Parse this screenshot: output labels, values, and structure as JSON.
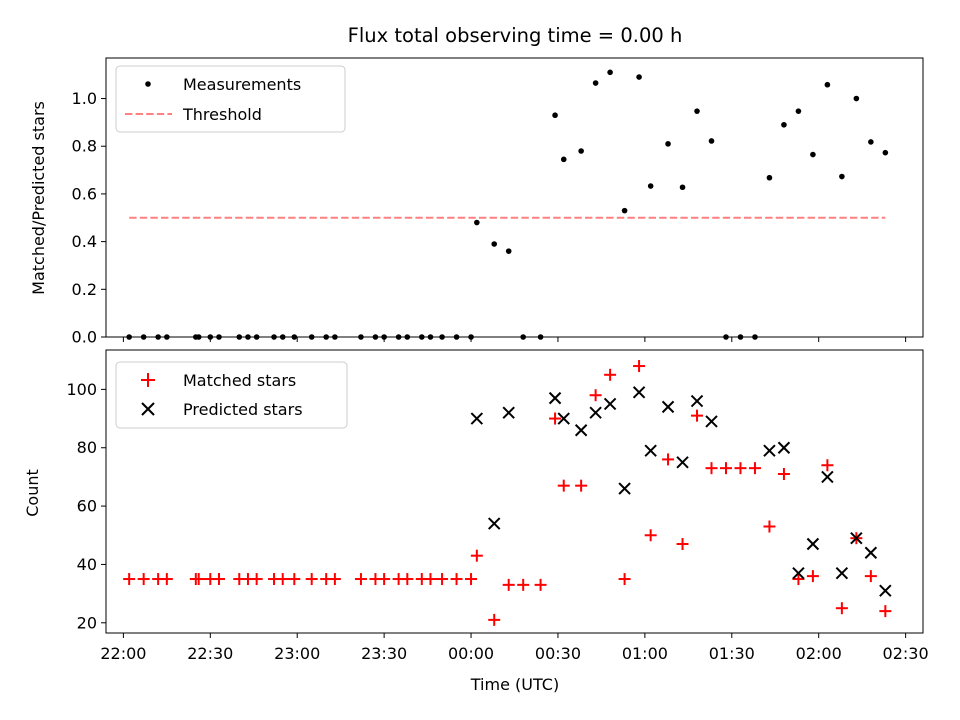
{
  "chart_data": [
    {
      "type": "scatter",
      "title": "Flux total observing time = 0.00 h",
      "xlabel": "",
      "ylabel": "Matched/Predicted stars",
      "xlim": [
        "21:54",
        "02:36"
      ],
      "ylim": [
        0,
        1.17
      ],
      "yticks": [
        "0.0",
        "0.2",
        "0.4",
        "0.6",
        "0.8",
        "1.0"
      ],
      "legend_position": "upper-left",
      "series": [
        {
          "name": "Measurements",
          "marker": "dot",
          "color": "#000000",
          "points": [
            [
              "22:02",
              0
            ],
            [
              "22:07",
              0
            ],
            [
              "22:12",
              0
            ],
            [
              "22:15",
              0
            ],
            [
              "22:25",
              0
            ],
            [
              "22:26",
              0
            ],
            [
              "22:30",
              0
            ],
            [
              "22:33",
              0
            ],
            [
              "22:40",
              0
            ],
            [
              "22:43",
              0
            ],
            [
              "22:46",
              0
            ],
            [
              "22:52",
              0
            ],
            [
              "22:55",
              0
            ],
            [
              "22:59",
              0
            ],
            [
              "23:05",
              0
            ],
            [
              "23:10",
              0
            ],
            [
              "23:13",
              0
            ],
            [
              "23:22",
              0
            ],
            [
              "23:27",
              0
            ],
            [
              "23:30",
              0
            ],
            [
              "23:35",
              0
            ],
            [
              "23:38",
              0
            ],
            [
              "23:43",
              0
            ],
            [
              "23:46",
              0
            ],
            [
              "23:50",
              0
            ],
            [
              "23:55",
              0
            ],
            [
              "00:00",
              0
            ],
            [
              "00:02",
              0.48
            ],
            [
              "00:08",
              0.39
            ],
            [
              "00:13",
              0.36
            ],
            [
              "00:18",
              0
            ],
            [
              "00:24",
              0
            ],
            [
              "00:29",
              0.93
            ],
            [
              "00:32",
              0.745
            ],
            [
              "00:38",
              0.78
            ],
            [
              "00:43",
              1.065
            ],
            [
              "00:48",
              1.11
            ],
            [
              "00:53",
              0.53
            ],
            [
              "00:58",
              1.09
            ],
            [
              "01:02",
              0.633
            ],
            [
              "01:08",
              0.81
            ],
            [
              "01:13",
              0.628
            ],
            [
              "01:18",
              0.947
            ],
            [
              "01:23",
              0.822
            ],
            [
              "01:28",
              0
            ],
            [
              "01:33",
              0
            ],
            [
              "01:38",
              0
            ],
            [
              "01:43",
              0.668
            ],
            [
              "01:48",
              0.89
            ],
            [
              "01:53",
              0.947
            ],
            [
              "01:58",
              0.765
            ],
            [
              "02:03",
              1.058
            ],
            [
              "02:08",
              0.673
            ],
            [
              "02:13",
              1.0
            ],
            [
              "02:18",
              0.818
            ],
            [
              "02:23",
              0.773
            ]
          ]
        },
        {
          "name": "Threshold",
          "marker": "dashed-line",
          "color": "#ff8080",
          "points": [
            [
              "22:02",
              0.5
            ],
            [
              "02:23",
              0.5
            ]
          ]
        }
      ]
    },
    {
      "type": "scatter",
      "title": "",
      "xlabel": "Time (UTC)",
      "ylabel": "Count",
      "xlim": [
        "21:54",
        "02:36"
      ],
      "ylim": [
        16.5,
        113.5
      ],
      "yticks": [
        "20",
        "40",
        "60",
        "80",
        "100"
      ],
      "xticks": [
        "22:00",
        "22:30",
        "23:00",
        "23:30",
        "00:00",
        "00:30",
        "01:00",
        "01:30",
        "02:00",
        "02:30"
      ],
      "legend_position": "upper-left",
      "series": [
        {
          "name": "Matched stars",
          "marker": "plus",
          "color": "#ff0000",
          "points": [
            [
              "22:02",
              35
            ],
            [
              "22:07",
              35
            ],
            [
              "22:12",
              35
            ],
            [
              "22:15",
              35
            ],
            [
              "22:25",
              35
            ],
            [
              "22:26",
              35
            ],
            [
              "22:30",
              35
            ],
            [
              "22:33",
              35
            ],
            [
              "22:40",
              35
            ],
            [
              "22:43",
              35
            ],
            [
              "22:46",
              35
            ],
            [
              "22:52",
              35
            ],
            [
              "22:55",
              35
            ],
            [
              "22:59",
              35
            ],
            [
              "23:05",
              35
            ],
            [
              "23:10",
              35
            ],
            [
              "23:13",
              35
            ],
            [
              "23:22",
              35
            ],
            [
              "23:27",
              35
            ],
            [
              "23:30",
              35
            ],
            [
              "23:35",
              35
            ],
            [
              "23:38",
              35
            ],
            [
              "23:43",
              35
            ],
            [
              "23:46",
              35
            ],
            [
              "23:50",
              35
            ],
            [
              "23:55",
              35
            ],
            [
              "00:00",
              35
            ],
            [
              "00:02",
              43
            ],
            [
              "00:08",
              21
            ],
            [
              "00:13",
              33
            ],
            [
              "00:18",
              33
            ],
            [
              "00:24",
              33
            ],
            [
              "00:29",
              90
            ],
            [
              "00:32",
              67
            ],
            [
              "00:38",
              67
            ],
            [
              "00:43",
              98
            ],
            [
              "00:48",
              105
            ],
            [
              "00:53",
              35
            ],
            [
              "00:58",
              108
            ],
            [
              "01:02",
              50
            ],
            [
              "01:08",
              76
            ],
            [
              "01:13",
              47
            ],
            [
              "01:18",
              91
            ],
            [
              "01:23",
              73
            ],
            [
              "01:28",
              73
            ],
            [
              "01:33",
              73
            ],
            [
              "01:38",
              73
            ],
            [
              "01:43",
              53
            ],
            [
              "01:48",
              71
            ],
            [
              "01:53",
              35
            ],
            [
              "01:58",
              36
            ],
            [
              "02:03",
              74
            ],
            [
              "02:08",
              25
            ],
            [
              "02:13",
              49
            ],
            [
              "02:18",
              36
            ],
            [
              "02:23",
              24
            ]
          ]
        },
        {
          "name": "Predicted stars",
          "marker": "x",
          "color": "#000000",
          "points": [
            [
              "00:02",
              90
            ],
            [
              "00:08",
              54
            ],
            [
              "00:13",
              92
            ],
            [
              "00:29",
              97
            ],
            [
              "00:32",
              90
            ],
            [
              "00:38",
              86
            ],
            [
              "00:43",
              92
            ],
            [
              "00:48",
              95
            ],
            [
              "00:53",
              66
            ],
            [
              "00:58",
              99
            ],
            [
              "01:02",
              79
            ],
            [
              "01:08",
              94
            ],
            [
              "01:13",
              75
            ],
            [
              "01:18",
              96
            ],
            [
              "01:23",
              89
            ],
            [
              "01:43",
              79
            ],
            [
              "01:48",
              80
            ],
            [
              "01:53",
              37
            ],
            [
              "01:58",
              47
            ],
            [
              "02:03",
              70
            ],
            [
              "02:08",
              37
            ],
            [
              "02:13",
              49
            ],
            [
              "02:18",
              44
            ],
            [
              "02:23",
              31
            ]
          ]
        }
      ]
    }
  ]
}
